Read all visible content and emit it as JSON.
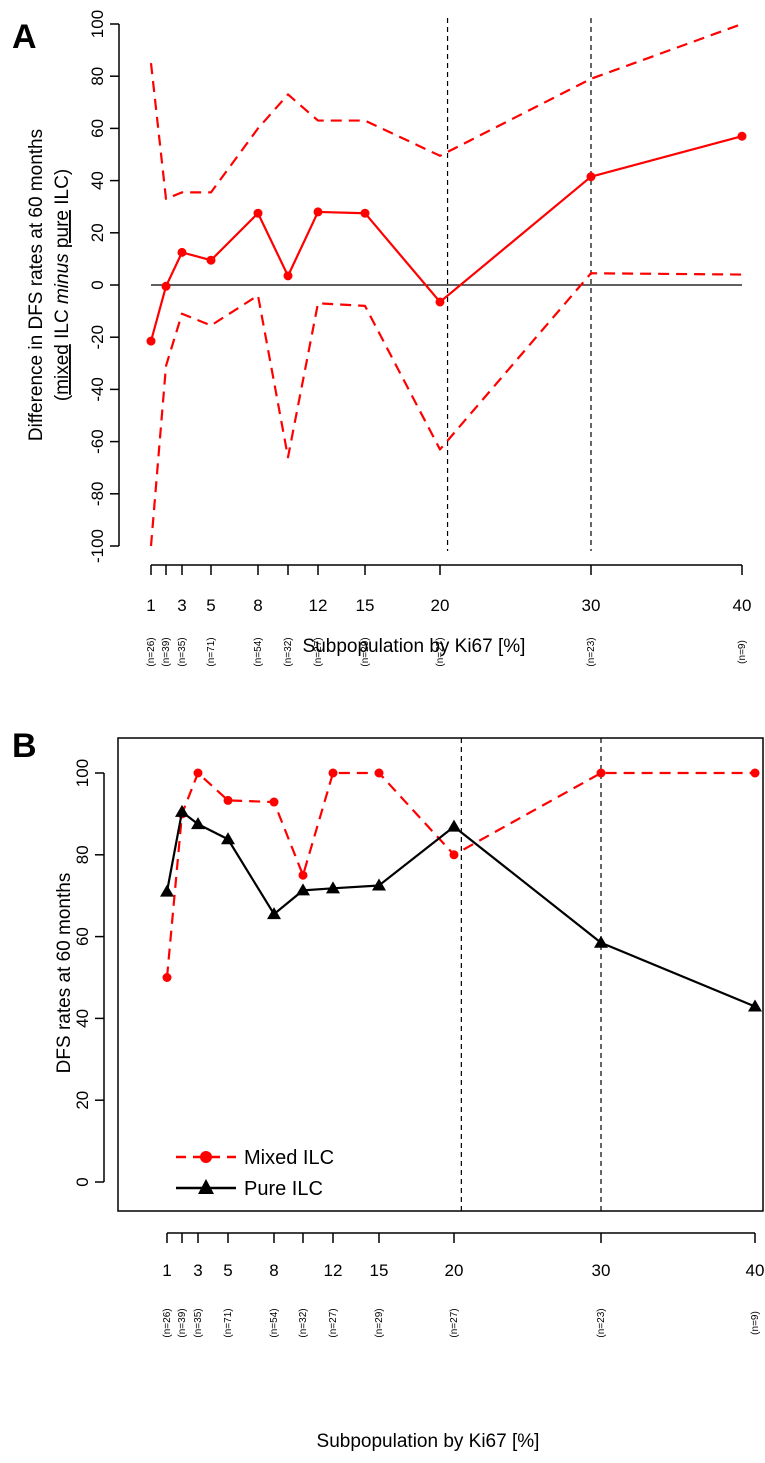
{
  "chart_data": [
    {
      "panel": "A",
      "type": "line",
      "xlabel": "Subpopulation by Ki67 [%]",
      "ylabel_line1": "Difference in DFS rates at 60 months",
      "ylabel_line2": {
        "open": "(",
        "mixed": "mixed",
        "ilc1": " ILC ",
        "minus": "minus",
        "space": " ",
        "pure": "pure",
        "close": " ILC)"
      },
      "ylim": [
        -100,
        100
      ],
      "yticks": [
        "-100",
        "-80",
        "-60",
        "-40",
        "-20",
        "0",
        "20",
        "40",
        "60",
        "80",
        "100"
      ],
      "xticks": [
        "1",
        "3",
        "5",
        "8",
        "12",
        "15",
        "20",
        "30",
        "40"
      ],
      "n_labels": [
        "(n=26)",
        "(n=39)",
        "(n=35)",
        "(n=71)",
        "(n=54)",
        "(n=32)",
        "(n=27)",
        "(n=29)",
        "(n=27)",
        "(n=23)",
        "(n=9)"
      ],
      "vlines": [
        20.5,
        30
      ],
      "hline": 0,
      "series": [
        {
          "role": "difference",
          "color": "#ff0000",
          "style": "solid",
          "marker": "circle",
          "x": [
            1,
            2,
            3,
            5,
            8,
            10,
            12,
            15,
            20,
            30,
            40
          ],
          "values": [
            -21.5,
            -0.5,
            12.5,
            9.5,
            27.5,
            3.5,
            28,
            27.5,
            -6.5,
            41.5,
            57
          ]
        },
        {
          "role": "ci-upper",
          "color": "#ff0000",
          "style": "dashed",
          "x": [
            1,
            2,
            3,
            5,
            8,
            10,
            12,
            15,
            20,
            30,
            40
          ],
          "values": [
            85,
            33,
            35.5,
            35.5,
            60,
            73,
            63,
            63,
            49.5,
            79,
            100
          ]
        },
        {
          "role": "ci-lower",
          "color": "#ff0000",
          "style": "dashed",
          "x": [
            1,
            2,
            3,
            5,
            8,
            10,
            12,
            15,
            20,
            30,
            40
          ],
          "values": [
            -100,
            -31,
            -11,
            -15.5,
            -4,
            -66,
            -7,
            -8,
            -63,
            4.5,
            4
          ]
        }
      ]
    },
    {
      "panel": "B",
      "type": "line",
      "xlabel": "Subpopulation by Ki67 [%]",
      "ylabel": "DFS rates at 60 months",
      "ylim": [
        0,
        100
      ],
      "yticks": [
        "0",
        "20",
        "40",
        "60",
        "80",
        "100"
      ],
      "xticks": [
        "1",
        "3",
        "5",
        "8",
        "12",
        "15",
        "20",
        "30",
        "40"
      ],
      "n_labels": [
        "(n=26)",
        "(n=39)",
        "(n=35)",
        "(n=71)",
        "(n=54)",
        "(n=32)",
        "(n=27)",
        "(n=29)",
        "(n=27)",
        "(n=23)",
        "(n=9)"
      ],
      "vlines": [
        20.5,
        30
      ],
      "legend_position": "bottom-left",
      "series": [
        {
          "name": "Mixed ILC",
          "color": "#ff0000",
          "style": "dashed",
          "marker": "circle",
          "x": [
            1,
            2,
            3,
            5,
            8,
            10,
            12,
            15,
            20,
            30,
            40
          ],
          "values": [
            50,
            90,
            100,
            93.3,
            92.9,
            75,
            100,
            100,
            80,
            100,
            100
          ]
        },
        {
          "name": "Pure ILC",
          "color": "#000000",
          "style": "solid",
          "marker": "triangle",
          "x": [
            1,
            2,
            3,
            5,
            8,
            10,
            12,
            15,
            20,
            30,
            40
          ],
          "values": [
            71,
            90.5,
            87.5,
            83.8,
            65.5,
            71.3,
            71.8,
            72.5,
            86.9,
            58.5,
            42.9
          ]
        }
      ]
    }
  ]
}
